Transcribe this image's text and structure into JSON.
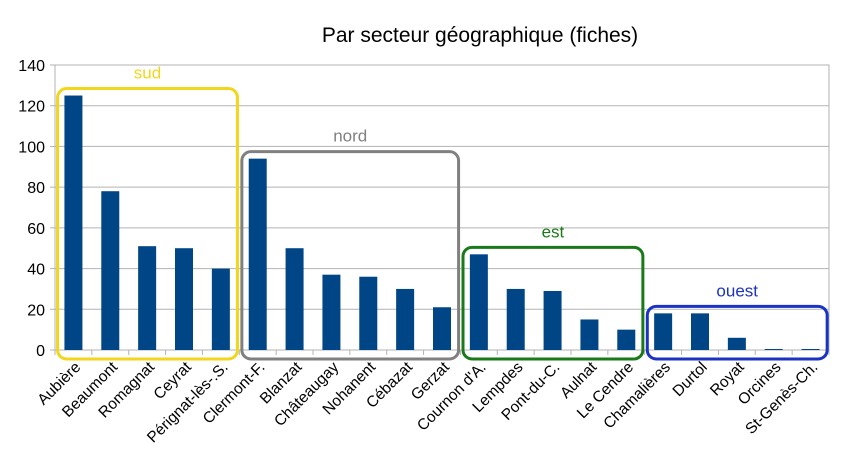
{
  "chart_data": {
    "type": "bar",
    "title": "Par secteur géographique (fiches)",
    "xlabel": "",
    "ylabel": "",
    "ylim": [
      0,
      140
    ],
    "yticks": [
      0,
      20,
      40,
      60,
      80,
      100,
      120,
      140
    ],
    "grid": true,
    "bar_color": "#004586",
    "categories": [
      "Aubière",
      "Beaumont",
      "Romagnat",
      "Ceyrat",
      "Pérignat-lès-.S.",
      "Clermont-F.",
      "Blanzat",
      "Châteaugay",
      "Nohanent",
      "Cébazat",
      "Gerzat",
      "Cournon d'A.",
      "Lempdes",
      "Pont-du-C.",
      "Aulnat",
      "Le Cendre",
      "Chamalières",
      "Durtol",
      "Royat",
      "Orcines",
      "St-Genès-Ch."
    ],
    "values": [
      125,
      78,
      51,
      50,
      40,
      94,
      50,
      37,
      36,
      30,
      21,
      47,
      30,
      29,
      15,
      10,
      18,
      18,
      6,
      0.5,
      0.5
    ],
    "groups": [
      {
        "label": "sud",
        "color": "#f2d61c",
        "start": 0,
        "end": 4
      },
      {
        "label": "nord",
        "color": "#808080",
        "start": 5,
        "end": 10
      },
      {
        "label": "est",
        "color": "#1a7a1a",
        "start": 11,
        "end": 15
      },
      {
        "label": "ouest",
        "color": "#1a33c4",
        "start": 16,
        "end": 20
      }
    ]
  }
}
